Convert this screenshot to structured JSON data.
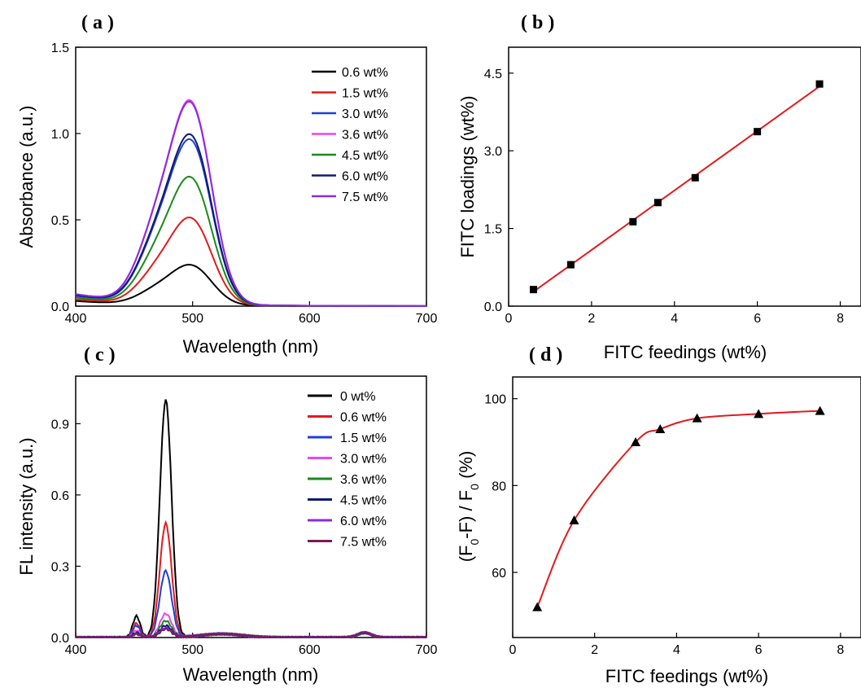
{
  "chart_data": [
    {
      "panel": "( a )",
      "type": "line",
      "xlabel": "Wavelength (nm)",
      "ylabel": "Absorbance (a.u.)",
      "xlim": [
        400,
        700
      ],
      "ylim": [
        0,
        1.5
      ],
      "xticks": [
        400,
        500,
        600,
        700
      ],
      "yticks": [
        0.0,
        0.5,
        1.0,
        1.5
      ],
      "xtick_labels": [
        "400",
        "500",
        "600",
        "700"
      ],
      "ytick_labels": [
        "0.0",
        "0.5",
        "1.0",
        "1.5"
      ],
      "legend_position": "top-right",
      "series": [
        {
          "name": "0.6 wt%",
          "color": "#000000",
          "peak": 0.25,
          "base": 0.03
        },
        {
          "name": "1.5 wt%",
          "color": "#e41a1c",
          "peak": 0.54,
          "base": 0.04
        },
        {
          "name": "3.0 wt%",
          "color": "#1f3fd6",
          "peak": 1.02,
          "base": 0.06
        },
        {
          "name": "3.6 wt%",
          "color": "#ee44ee",
          "peak": 1.26,
          "base": 0.07
        },
        {
          "name": "4.5 wt%",
          "color": "#1a8a1a",
          "peak": 0.79,
          "base": 0.05
        },
        {
          "name": "6.0 wt%",
          "color": "#101a70",
          "peak": 1.05,
          "base": 0.065
        },
        {
          "name": "7.5 wt%",
          "color": "#8a2be2",
          "peak": 1.25,
          "base": 0.07
        }
      ]
    },
    {
      "panel": "( b )",
      "type": "scatter",
      "xlabel": "FITC feedings (wt%)",
      "ylabel": "FITC loadings (wt%)",
      "xlim": [
        0,
        8.5
      ],
      "ylim": [
        0,
        5
      ],
      "xticks": [
        0,
        2,
        4,
        6,
        8
      ],
      "yticks": [
        0.0,
        1.5,
        3.0,
        4.5
      ],
      "xtick_labels": [
        "0",
        "2",
        "4",
        "6",
        "8"
      ],
      "ytick_labels": [
        "0.0",
        "1.5",
        "3.0",
        "4.5"
      ],
      "x": [
        0.6,
        1.5,
        3.0,
        3.6,
        4.5,
        6.0,
        7.5
      ],
      "y": [
        0.32,
        0.8,
        1.63,
        2.0,
        2.48,
        3.37,
        4.29
      ],
      "marker": "square",
      "fit": "linear",
      "fit_color": "#e41a1c"
    },
    {
      "panel": "( c )",
      "type": "line",
      "xlabel": "Wavelength (nm)",
      "ylabel": "FL intensity (a.u.)",
      "xlim": [
        400,
        700
      ],
      "ylim": [
        0,
        1.1
      ],
      "xticks": [
        400,
        500,
        600,
        700
      ],
      "yticks": [
        0.0,
        0.3,
        0.6,
        0.9
      ],
      "xtick_labels": [
        "400",
        "500",
        "600",
        "700"
      ],
      "ytick_labels": [
        "0.0",
        "0.3",
        "0.6",
        "0.9"
      ],
      "legend_position": "top-right",
      "series": [
        {
          "name": "0 wt%",
          "color": "#000000",
          "peak": 1.0,
          "side": 0.09
        },
        {
          "name": "0.6 wt%",
          "color": "#e41a1c",
          "peak": 0.48,
          "side": 0.06
        },
        {
          "name": "1.5 wt%",
          "color": "#1f3fd6",
          "peak": 0.28,
          "side": 0.05
        },
        {
          "name": " 3.0 wt%",
          "color": "#ee44ee",
          "peak": 0.1,
          "side": 0.03
        },
        {
          "name": "3.6 wt%",
          "color": "#1a8a1a",
          "peak": 0.07,
          "side": 0.02
        },
        {
          "name": "4.5 wt%",
          "color": "#101a70",
          "peak": 0.05,
          "side": 0.02
        },
        {
          "name": "6.0 wt%",
          "color": "#8a2be2",
          "peak": 0.04,
          "side": 0.015
        },
        {
          "name": "7.5 wt%",
          "color": "#7a1a5a",
          "peak": 0.035,
          "side": 0.015
        }
      ]
    },
    {
      "panel": "( d )",
      "type": "scatter",
      "xlabel": "FITC feedings (wt%)",
      "ylabel": "(F₀-F) / F₀ (%)",
      "xlim": [
        0,
        8.5
      ],
      "ylim": [
        45,
        105
      ],
      "xticks": [
        0,
        2,
        4,
        6,
        8
      ],
      "yticks": [
        60,
        80,
        100
      ],
      "xtick_labels": [
        "0",
        "2",
        "4",
        "6",
        "8"
      ],
      "ytick_labels": [
        "60",
        "80",
        "100"
      ],
      "x": [
        0.6,
        1.5,
        3.0,
        3.6,
        4.5,
        6.0,
        7.5
      ],
      "y": [
        52,
        72,
        90,
        93,
        95.5,
        96.5,
        97.2
      ],
      "marker": "triangle",
      "fit": "smooth",
      "fit_color": "#e41a1c"
    }
  ]
}
